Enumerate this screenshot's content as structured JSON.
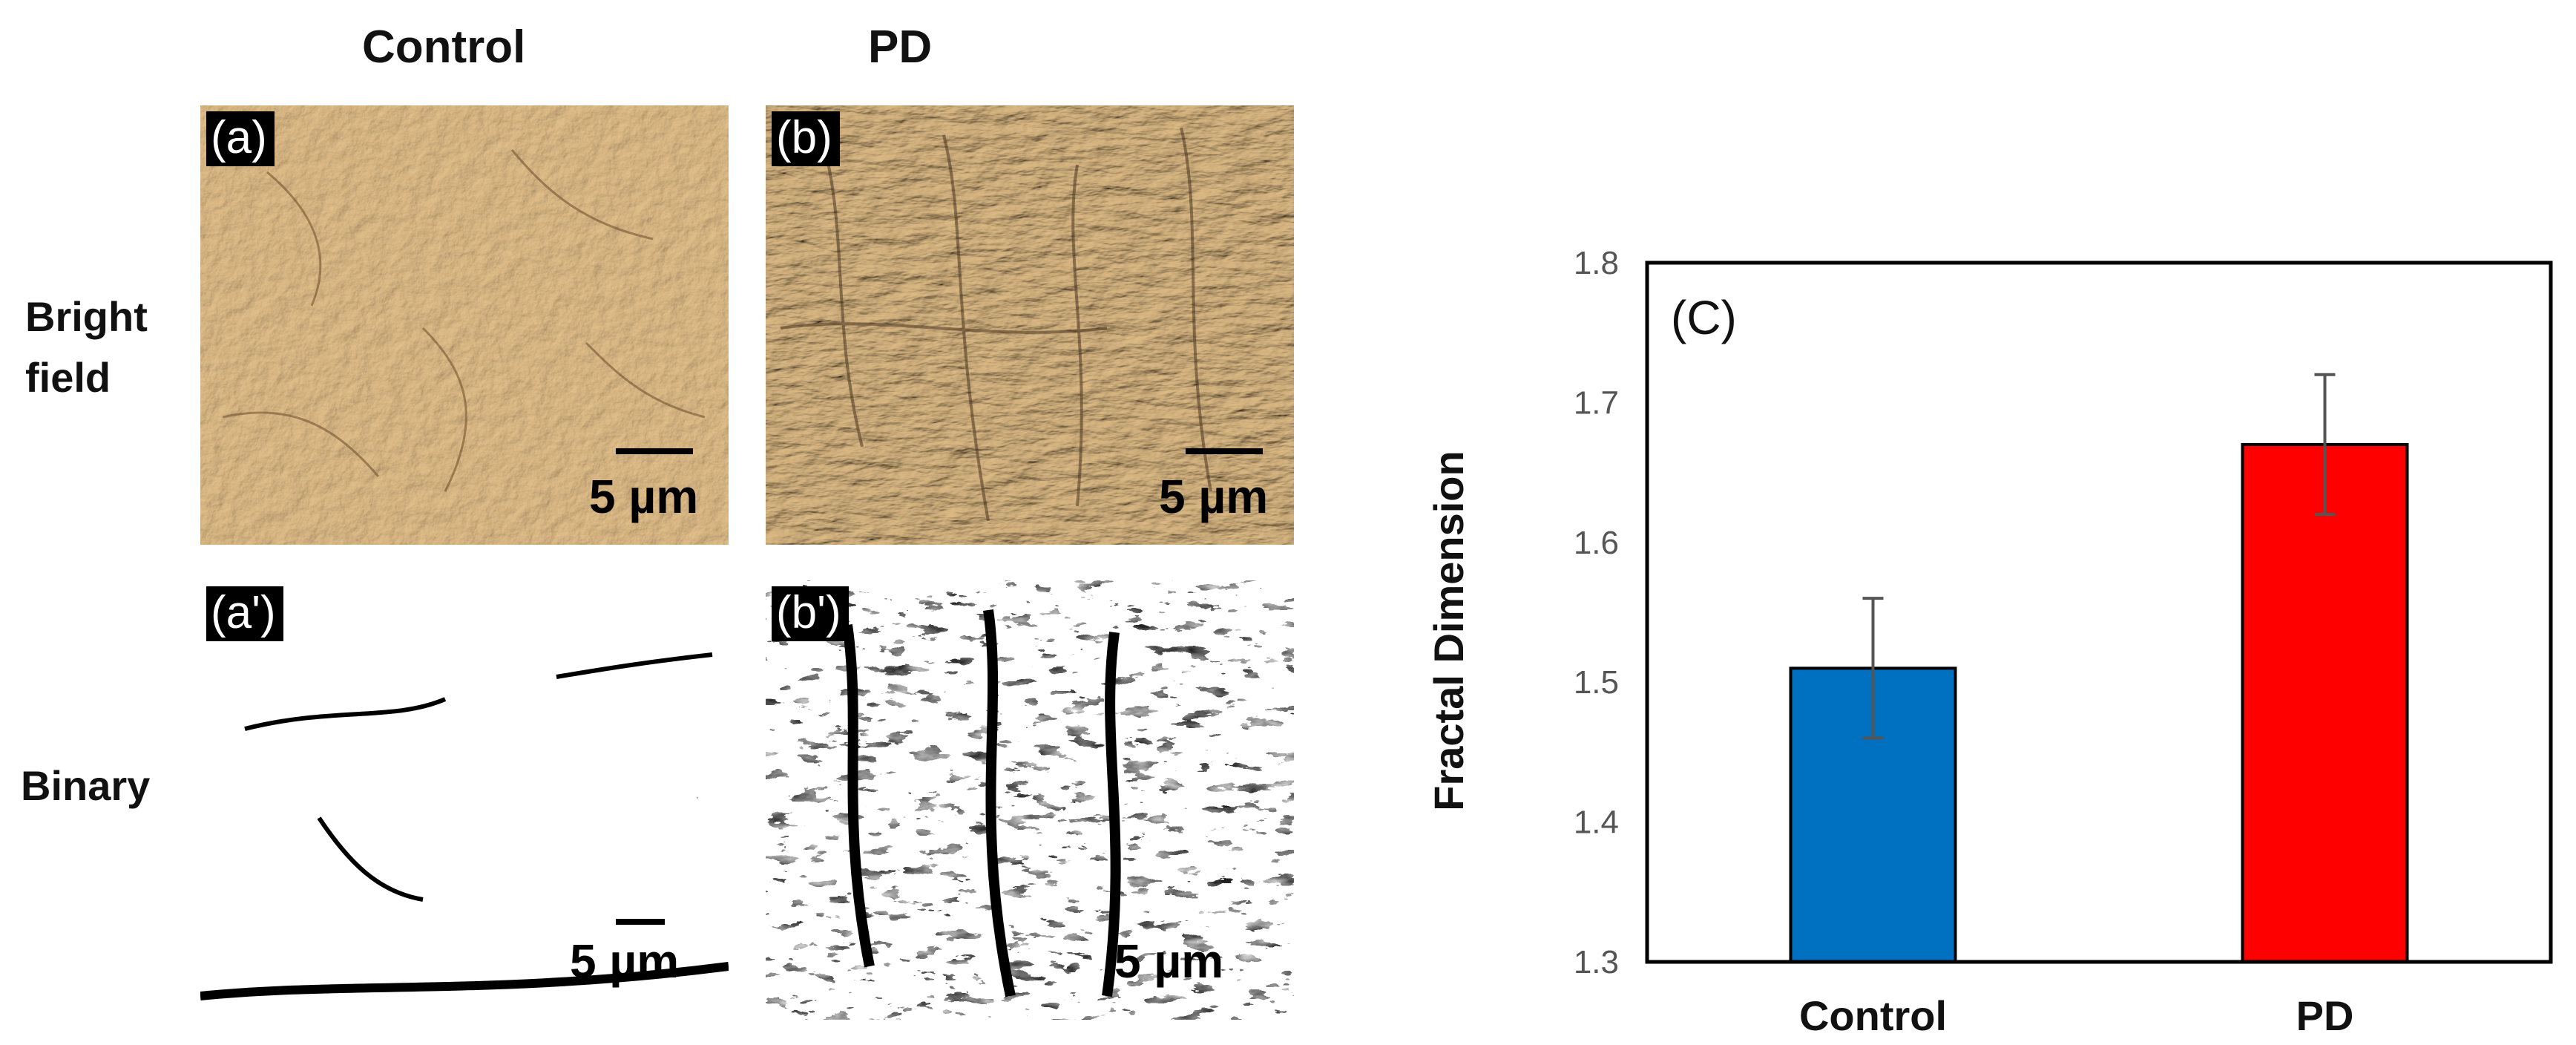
{
  "columns": {
    "control": "Control",
    "pd": "PD"
  },
  "rows": {
    "bright_field": [
      "Bright",
      "field"
    ],
    "binary": "Binary"
  },
  "panels": {
    "a": {
      "tag": "(a)",
      "scale": "5 µm"
    },
    "b": {
      "tag": "(b)",
      "scale": "5 µm"
    },
    "a2": {
      "tag": "(a')",
      "scale": "5 µm"
    },
    "b2": {
      "tag": "(b')",
      "scale": "5 µm"
    }
  },
  "colors": {
    "bright_field_bg": "#d9b681",
    "control_bar": "#0070c0",
    "pd_bar": "#ff0000"
  },
  "chart_data": {
    "type": "bar",
    "panel_label": "(C)",
    "categories": [
      "Control",
      "PD"
    ],
    "values": [
      1.51,
      1.67
    ],
    "errors": [
      0.05,
      0.05
    ],
    "colors": [
      "#0070c0",
      "#ff0000"
    ],
    "ylabel": "Fractal Dimension",
    "xlabel": "",
    "ylim": [
      1.3,
      1.8
    ],
    "yticks": [
      1.3,
      1.4,
      1.5,
      1.6,
      1.7,
      1.8
    ],
    "grid": false
  }
}
